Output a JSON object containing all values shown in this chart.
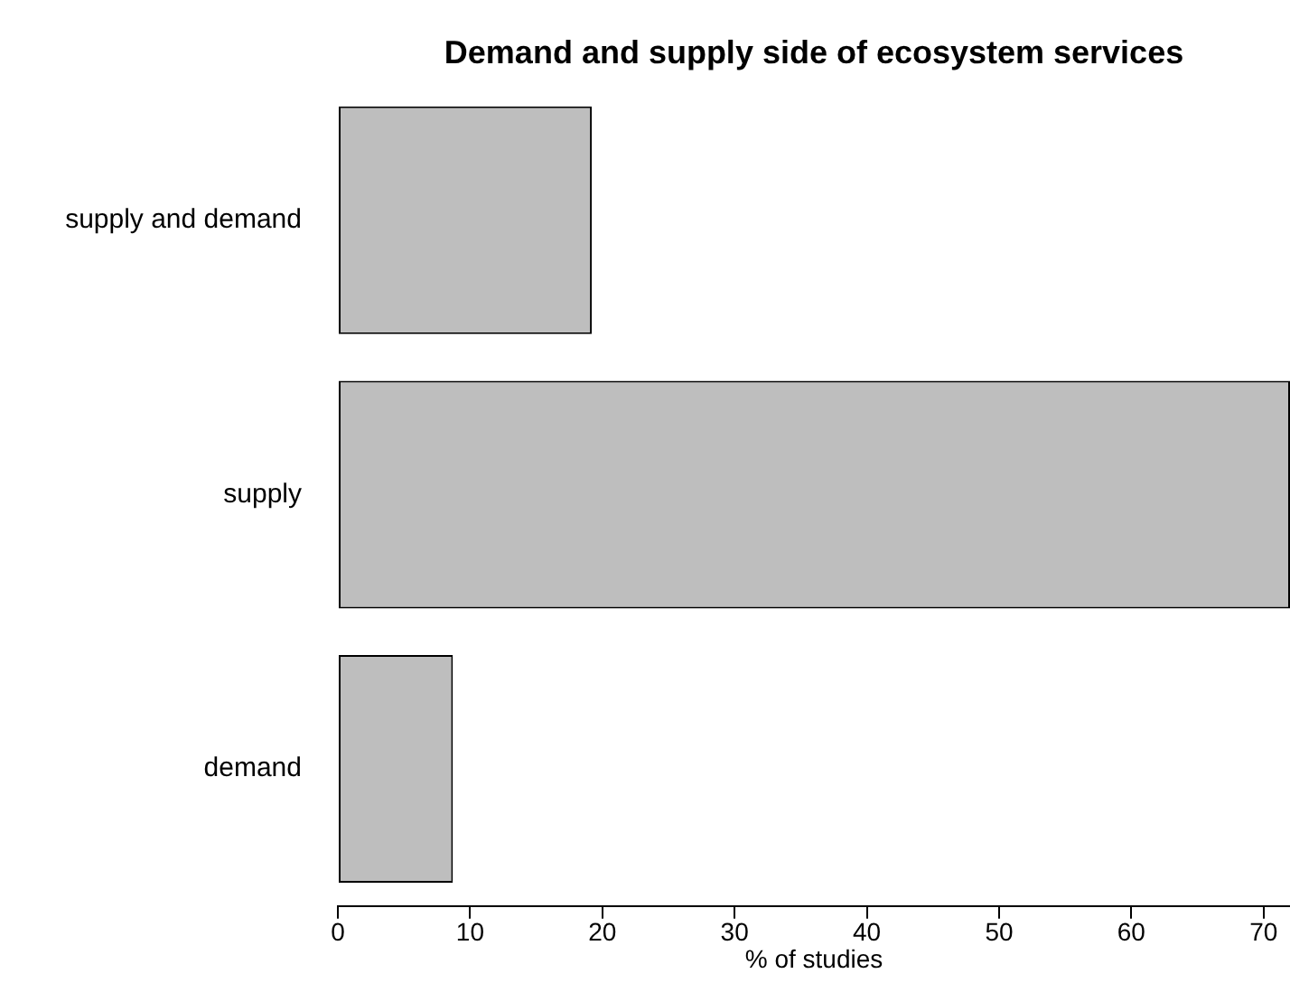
{
  "chart_data": {
    "type": "bar",
    "orientation": "horizontal",
    "title": "Demand and supply side of ecosystem services",
    "xlabel": "% of studies",
    "categories": [
      "supply and demand",
      "supply",
      "demand"
    ],
    "values": [
      19.2,
      72,
      8.7
    ],
    "color": "#bebebe",
    "xlim": [
      0,
      72
    ],
    "xticks": [
      0,
      10,
      20,
      30,
      40,
      50,
      60,
      70
    ],
    "grid": false,
    "legend": false
  }
}
